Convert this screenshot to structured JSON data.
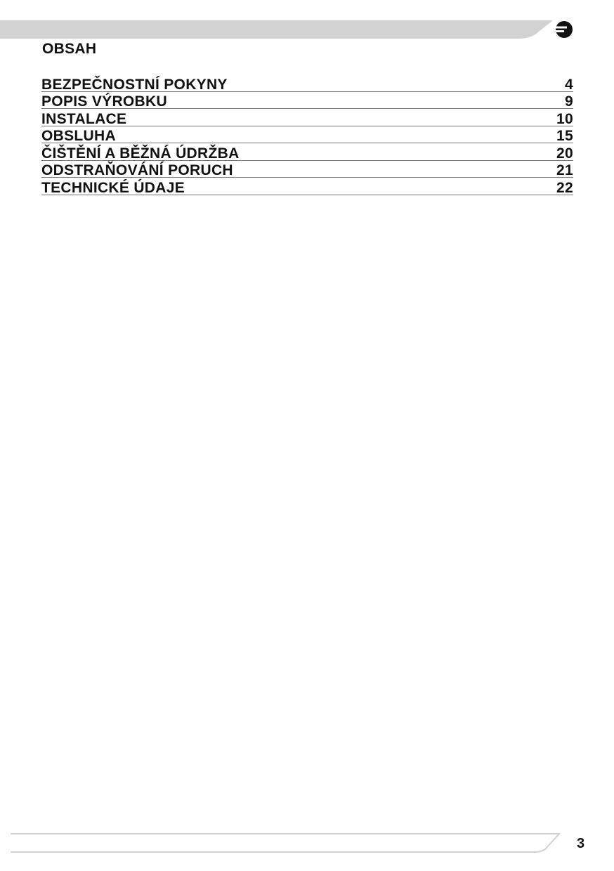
{
  "header": {
    "logo": "brand-logo-icon",
    "bar_color": "#d2d2d2"
  },
  "title": "OBSAH",
  "toc": [
    {
      "label": "BEZPEČNOSTNÍ POKYNY",
      "page": "4"
    },
    {
      "label": "POPIS VÝROBKU",
      "page": "9"
    },
    {
      "label": "INSTALACE",
      "page": "10"
    },
    {
      "label": "OBSLUHA",
      "page": "15"
    },
    {
      "label": "ČIŠTĚNÍ A BĚŽNÁ ÚDRŽBA",
      "page": "20"
    },
    {
      "label": "ODSTRAŇOVÁNÍ PORUCH",
      "page": "21"
    },
    {
      "label": "TECHNICKÉ ÚDAJE",
      "page": "22"
    }
  ],
  "footer": {
    "page_number": "3"
  }
}
